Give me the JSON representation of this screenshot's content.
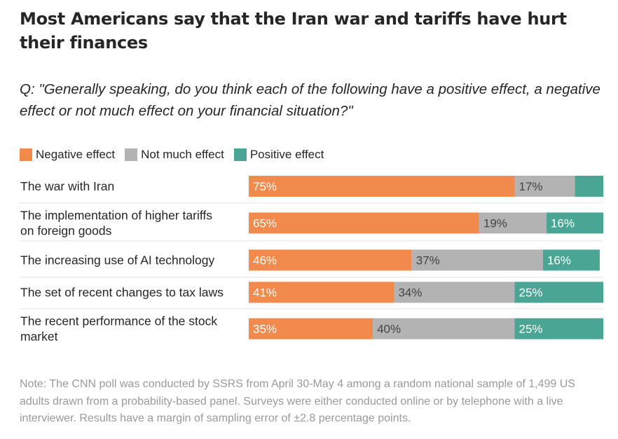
{
  "title": "Most Americans say that the Iran war and tariffs have hurt their finances",
  "question": "Q: \"Generally speaking, do you think each of the following have a positive effect, a negative effect or not much effect on your financial situation?\"",
  "note": "Note: The CNN poll was conducted by SSRS from April 30-May 4 among a random national sample of 1,499 US adults drawn from a probability-based panel. Surveys were either conducted online or by telephone with a live interviewer. Results have a margin of sampling error of ±2.8 percentage points.",
  "colors": {
    "negative": "#f28a4e",
    "not_much": "#b3b3b3",
    "positive": "#4aa594",
    "label_on_color": "#ffffff",
    "label_on_gray": "#444444",
    "divider": "#e3e3e3"
  },
  "chart_data": {
    "type": "bar",
    "orientation": "horizontal",
    "stacked": true,
    "xlim": [
      0,
      100
    ],
    "categories": [
      "The war with Iran",
      "The implementation of higher tariffs on foreign goods",
      "The increasing use of AI technology",
      "The set of recent changes to tax laws",
      "The recent performance of the stock market"
    ],
    "series": [
      {
        "name": "Negative effect",
        "values": [
          75,
          65,
          46,
          41,
          35
        ],
        "labels": [
          "75%",
          "65%",
          "46%",
          "41%",
          "35%"
        ]
      },
      {
        "name": "Not much effect",
        "values": [
          17,
          19,
          37,
          34,
          40
        ],
        "labels": [
          "17%",
          "19%",
          "37%",
          "34%",
          "40%"
        ]
      },
      {
        "name": "Positive effect",
        "values": [
          8,
          16,
          16,
          25,
          25
        ],
        "labels": [
          "",
          "16%",
          "16%",
          "25%",
          "25%"
        ]
      }
    ],
    "legend": "top-left"
  }
}
